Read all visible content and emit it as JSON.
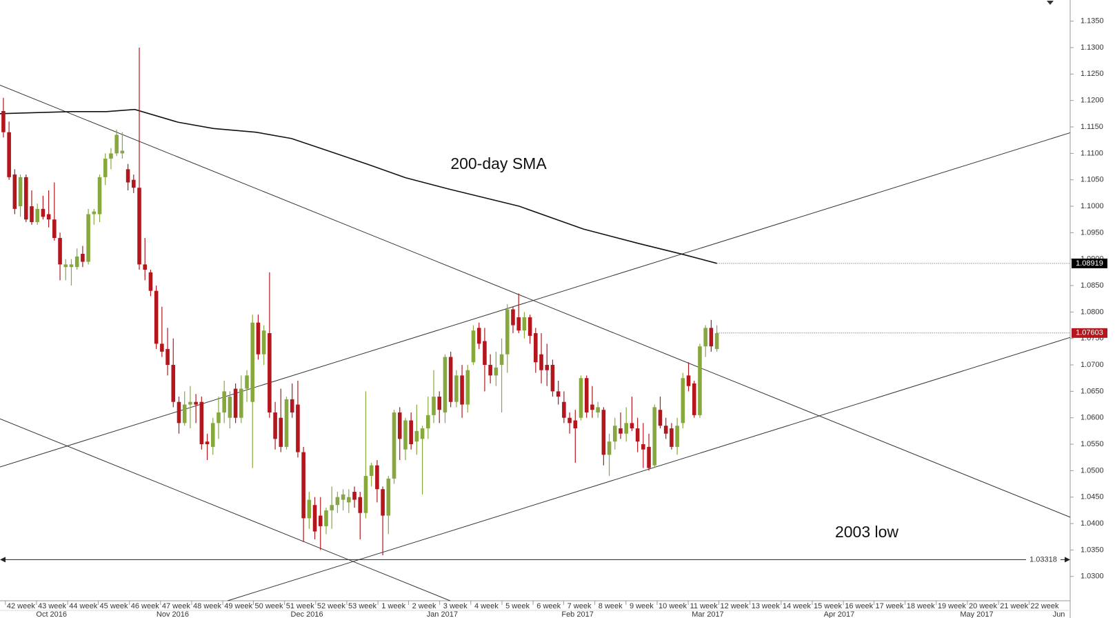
{
  "chart_data": {
    "type": "candlestick",
    "up_color": "#86a83d",
    "down_color": "#b3161c",
    "xlim": [
      -0.6,
      188.4
    ],
    "ylim": [
      1.0254,
      1.139
    ],
    "yticks": [
      {
        "value": 1.03,
        "label": "1.0300"
      },
      {
        "value": 1.035,
        "label": "1.0350"
      },
      {
        "value": 1.04,
        "label": "1.0400"
      },
      {
        "value": 1.045,
        "label": "1.0450"
      },
      {
        "value": 1.05,
        "label": "1.0500"
      },
      {
        "value": 1.055,
        "label": "1.0550"
      },
      {
        "value": 1.06,
        "label": "1.0600"
      },
      {
        "value": 1.065,
        "label": "1.0650"
      },
      {
        "value": 1.07,
        "label": "1.0700"
      },
      {
        "value": 1.075,
        "label": "1.0750"
      },
      {
        "value": 1.08,
        "label": "1.0800"
      },
      {
        "value": 1.085,
        "label": "1.0850"
      },
      {
        "value": 1.09,
        "label": "1.0900"
      },
      {
        "value": 1.095,
        "label": "1.0950"
      },
      {
        "value": 1.1,
        "label": "1.1000"
      },
      {
        "value": 1.105,
        "label": "1.1050"
      },
      {
        "value": 1.11,
        "label": "1.1100"
      },
      {
        "value": 1.115,
        "label": "1.1150"
      },
      {
        "value": 1.12,
        "label": "1.1200"
      },
      {
        "value": 1.125,
        "label": "1.1250"
      },
      {
        "value": 1.13,
        "label": "1.1300"
      },
      {
        "value": 1.135,
        "label": "1.1350"
      }
    ],
    "week_ticks": [
      {
        "value": 3.1,
        "label": "42 week"
      },
      {
        "value": 8.6,
        "label": "43 week"
      },
      {
        "value": 14.1,
        "label": "44 week"
      },
      {
        "value": 19.5,
        "label": "45 week"
      },
      {
        "value": 25.0,
        "label": "46 week"
      },
      {
        "value": 30.5,
        "label": "47 week"
      },
      {
        "value": 36.0,
        "label": "48 week"
      },
      {
        "value": 41.5,
        "label": "49 week"
      },
      {
        "value": 46.9,
        "label": "50 week"
      },
      {
        "value": 52.4,
        "label": "51 week"
      },
      {
        "value": 57.9,
        "label": "52 week"
      },
      {
        "value": 63.4,
        "label": "53 week"
      },
      {
        "value": 68.9,
        "label": "1 week"
      },
      {
        "value": 74.3,
        "label": "2 week"
      },
      {
        "value": 79.8,
        "label": "3 week"
      },
      {
        "value": 85.3,
        "label": "4 week"
      },
      {
        "value": 90.8,
        "label": "5 week"
      },
      {
        "value": 96.3,
        "label": "6 week"
      },
      {
        "value": 101.7,
        "label": "7 week"
      },
      {
        "value": 107.2,
        "label": "8 week"
      },
      {
        "value": 112.7,
        "label": "9 week"
      },
      {
        "value": 118.2,
        "label": "10 week"
      },
      {
        "value": 123.7,
        "label": "11 week"
      },
      {
        "value": 129.1,
        "label": "12 week"
      },
      {
        "value": 134.6,
        "label": "13 week"
      },
      {
        "value": 140.1,
        "label": "14 week"
      },
      {
        "value": 145.6,
        "label": "15 week"
      },
      {
        "value": 151.1,
        "label": "16 week"
      },
      {
        "value": 156.5,
        "label": "17 week"
      },
      {
        "value": 162.0,
        "label": "18 week"
      },
      {
        "value": 167.5,
        "label": "19 week"
      },
      {
        "value": 173.0,
        "label": "20 week"
      },
      {
        "value": 178.5,
        "label": "21 week"
      },
      {
        "value": 183.9,
        "label": "22 week"
      }
    ],
    "month_ticks": [
      {
        "value": 8.5,
        "label": "Oct 2016"
      },
      {
        "value": 29.9,
        "label": "Nov 2016"
      },
      {
        "value": 53.6,
        "label": "Dec 2016"
      },
      {
        "value": 77.5,
        "label": "Jan 2017"
      },
      {
        "value": 101.4,
        "label": "Feb 2017"
      },
      {
        "value": 124.4,
        "label": "Mar 2017"
      },
      {
        "value": 147.6,
        "label": "Apr 2017"
      },
      {
        "value": 171.9,
        "label": "May 2017"
      },
      {
        "value": 186.4,
        "label": "Jun"
      }
    ],
    "candles": [
      [
        1.118,
        1.1205,
        1.113,
        1.114
      ],
      [
        1.114,
        1.116,
        1.105,
        1.1055
      ],
      [
        1.106,
        1.107,
        1.0985,
        1.0995
      ],
      [
        1.1,
        1.106,
        1.098,
        1.1055
      ],
      [
        1.1055,
        1.106,
        1.097,
        1.0975
      ],
      [
        1.1,
        1.103,
        1.0965,
        1.097
      ],
      [
        1.097,
        1.1005,
        1.0965,
        1.0995
      ],
      [
        1.0995,
        1.102,
        1.0975,
        1.098
      ],
      [
        1.0985,
        1.103,
        1.096,
        1.0975
      ],
      [
        1.0975,
        1.1045,
        1.0935,
        1.094
      ],
      [
        1.094,
        1.095,
        1.086,
        1.089
      ],
      [
        1.0885,
        1.09,
        1.086,
        1.089
      ],
      [
        1.0885,
        1.09,
        1.085,
        1.089
      ],
      [
        1.0885,
        1.092,
        1.088,
        1.0905
      ],
      [
        1.091,
        1.0925,
        1.0885,
        1.0895
      ],
      [
        1.0895,
        1.0995,
        1.089,
        1.0985
      ],
      [
        1.0985,
        1.0995,
        1.0965,
        1.099
      ],
      [
        1.0985,
        1.106,
        1.097,
        1.1055
      ],
      [
        1.1055,
        1.11,
        1.104,
        1.109
      ],
      [
        1.109,
        1.111,
        1.107,
        1.11
      ],
      [
        1.11,
        1.1145,
        1.1095,
        1.1135
      ],
      [
        1.11,
        1.114,
        1.109,
        1.1105
      ],
      [
        1.107,
        1.108,
        1.103,
        1.1045
      ],
      [
        1.105,
        1.106,
        1.1025,
        1.1035
      ],
      [
        1.1035,
        1.13,
        1.088,
        1.089
      ],
      [
        1.089,
        1.094,
        1.086,
        1.088
      ],
      [
        1.0875,
        1.088,
        1.083,
        1.084
      ],
      [
        1.084,
        1.085,
        1.073,
        1.074
      ],
      [
        1.074,
        1.081,
        1.0715,
        1.0725
      ],
      [
        1.073,
        1.077,
        1.068,
        1.07
      ],
      [
        1.07,
        1.075,
        1.062,
        1.063
      ],
      [
        1.063,
        1.064,
        1.057,
        1.059
      ],
      [
        1.059,
        1.065,
        1.0585,
        1.0625
      ],
      [
        1.0625,
        1.066,
        1.058,
        1.063
      ],
      [
        1.063,
        1.0645,
        1.059,
        1.0625
      ],
      [
        1.063,
        1.064,
        1.054,
        1.055
      ],
      [
        1.0555,
        1.057,
        1.052,
        1.055
      ],
      [
        1.0545,
        1.06,
        1.053,
        1.059
      ],
      [
        1.059,
        1.064,
        1.056,
        1.061
      ],
      [
        1.061,
        1.067,
        1.059,
        1.065
      ],
      [
        1.06,
        1.065,
        1.058,
        1.064
      ],
      [
        1.0655,
        1.0665,
        1.059,
        1.06
      ],
      [
        1.06,
        1.068,
        1.059,
        1.0655
      ],
      [
        1.0655,
        1.069,
        1.063,
        1.068
      ],
      [
        1.063,
        1.0795,
        1.0505,
        1.078
      ],
      [
        1.078,
        1.0795,
        1.071,
        1.072
      ],
      [
        1.072,
        1.0775,
        1.07,
        1.0765
      ],
      [
        1.076,
        1.0875,
        1.06,
        1.061
      ],
      [
        1.061,
        1.063,
        1.054,
        1.056
      ],
      [
        1.06,
        1.0655,
        1.0535,
        1.0545
      ],
      [
        1.0545,
        1.064,
        1.054,
        1.0635
      ],
      [
        1.0635,
        1.0665,
        1.06,
        1.061
      ],
      [
        1.0625,
        1.067,
        1.0525,
        1.0535
      ],
      [
        1.0535,
        1.0545,
        1.0365,
        1.041
      ],
      [
        1.041,
        1.046,
        1.039,
        1.0445
      ],
      [
        1.0435,
        1.045,
        1.037,
        1.0385
      ],
      [
        1.0415,
        1.045,
        1.035,
        1.0395
      ],
      [
        1.0395,
        1.043,
        1.038,
        1.0425
      ],
      [
        1.0425,
        1.047,
        1.039,
        1.0435
      ],
      [
        1.0435,
        1.046,
        1.042,
        1.045
      ],
      [
        1.0445,
        1.0465,
        1.0425,
        1.0455
      ],
      [
        1.044,
        1.0465,
        1.042,
        1.045
      ],
      [
        1.046,
        1.047,
        1.043,
        1.0445
      ],
      [
        1.045,
        1.046,
        1.037,
        1.042
      ],
      [
        1.042,
        1.065,
        1.041,
        1.049
      ],
      [
        1.049,
        1.0515,
        1.047,
        1.051
      ],
      [
        1.051,
        1.052,
        1.044,
        1.0465
      ],
      [
        1.0465,
        1.047,
        1.034,
        1.0415
      ],
      [
        1.0415,
        1.049,
        1.038,
        1.0485
      ],
      [
        1.0485,
        1.0615,
        1.0475,
        1.061
      ],
      [
        1.061,
        1.062,
        1.052,
        1.056
      ],
      [
        1.054,
        1.06,
        1.052,
        1.0595
      ],
      [
        1.0595,
        1.061,
        1.054,
        1.055
      ],
      [
        1.0555,
        1.0625,
        1.053,
        1.0575
      ],
      [
        1.056,
        1.0585,
        1.0455,
        1.058
      ],
      [
        1.058,
        1.064,
        1.056,
        1.0605
      ],
      [
        1.0605,
        1.069,
        1.059,
        1.064
      ],
      [
        1.064,
        1.065,
        1.059,
        1.0615
      ],
      [
        1.061,
        1.072,
        1.059,
        1.0715
      ],
      [
        1.0715,
        1.0725,
        1.062,
        1.063
      ],
      [
        1.063,
        1.069,
        1.062,
        1.068
      ],
      [
        1.068,
        1.07,
        1.06,
        1.0625
      ],
      [
        1.0625,
        1.07,
        1.061,
        1.069
      ],
      [
        1.0705,
        1.0775,
        1.07,
        1.0765
      ],
      [
        1.077,
        1.078,
        1.073,
        1.074
      ],
      [
        1.0745,
        1.077,
        1.065,
        1.07
      ],
      [
        1.07,
        1.072,
        1.0665,
        1.068
      ],
      [
        1.068,
        1.0725,
        1.066,
        1.0695
      ],
      [
        1.07,
        1.075,
        1.061,
        1.072
      ],
      [
        1.072,
        1.0815,
        1.0685,
        1.0805
      ],
      [
        1.0805,
        1.081,
        1.076,
        1.0775
      ],
      [
        1.079,
        1.0835,
        1.076,
        1.0765
      ],
      [
        1.0765,
        1.08,
        1.075,
        1.079
      ],
      [
        1.079,
        1.0795,
        1.074,
        1.0755
      ],
      [
        1.076,
        1.077,
        1.0685,
        1.0705
      ],
      [
        1.072,
        1.076,
        1.0665,
        1.069
      ],
      [
        1.07,
        1.074,
        1.066,
        1.069
      ],
      [
        1.07,
        1.071,
        1.064,
        1.065
      ],
      [
        1.065,
        1.067,
        1.0625,
        1.064
      ],
      [
        1.063,
        1.065,
        1.059,
        1.06
      ],
      [
        1.06,
        1.061,
        1.057,
        1.059
      ],
      [
        1.0595,
        1.0615,
        1.0515,
        1.058
      ],
      [
        1.06,
        1.068,
        1.0595,
        1.0675
      ],
      [
        1.0675,
        1.068,
        1.06,
        1.061
      ],
      [
        1.0625,
        1.066,
        1.06,
        1.0615
      ],
      [
        1.061,
        1.063,
        1.06,
        1.062
      ],
      [
        1.0615,
        1.062,
        1.051,
        1.053
      ],
      [
        1.053,
        1.057,
        1.049,
        1.0555
      ],
      [
        1.0555,
        1.06,
        1.054,
        1.0585
      ],
      [
        1.058,
        1.061,
        1.056,
        1.057
      ],
      [
        1.057,
        1.062,
        1.0555,
        1.059
      ],
      [
        1.059,
        1.064,
        1.0575,
        1.058
      ],
      [
        1.058,
        1.06,
        1.0535,
        1.0555
      ],
      [
        1.055,
        1.059,
        1.0505,
        1.054
      ],
      [
        1.0545,
        1.057,
        1.05,
        1.0505
      ],
      [
        1.051,
        1.0625,
        1.0505,
        1.062
      ],
      [
        1.0615,
        1.064,
        1.058,
        1.0585
      ],
      [
        1.0585,
        1.06,
        1.056,
        1.057
      ],
      [
        1.058,
        1.059,
        1.054,
        1.0545
      ],
      [
        1.0545,
        1.06,
        1.053,
        1.0585
      ],
      [
        1.059,
        1.0685,
        1.058,
        1.0675
      ],
      [
        1.068,
        1.0705,
        1.065,
        1.066
      ],
      [
        1.0665,
        1.067,
        1.06,
        1.0605
      ],
      [
        1.0605,
        1.074,
        1.06,
        1.0735
      ],
      [
        1.0735,
        1.0775,
        1.0715,
        1.077
      ],
      [
        1.077,
        1.0785,
        1.0725,
        1.0735
      ],
      [
        1.073,
        1.0775,
        1.0725,
        1.076
      ]
    ],
    "sma": {
      "label": "200-day SMA",
      "color": "#111111",
      "x": [
        -0.6,
        12,
        18.2,
        23.2,
        30.8,
        37.1,
        44.6,
        50.9,
        58.4,
        64.7,
        71,
        78.5,
        91.1,
        102.4,
        112.4,
        120,
        126
      ],
      "values": [
        1.1175,
        1.1179,
        1.1179,
        1.1183,
        1.1159,
        1.1147,
        1.114,
        1.1128,
        1.1101,
        1.1078,
        1.1054,
        1.1033,
        1.1,
        1.0957,
        1.0929,
        1.0909,
        1.0892
      ]
    },
    "trendlines": [
      {
        "x": [
          -0.6,
          188.4
        ],
        "y": [
          1.1229,
          1.0412
        ]
      },
      {
        "x": [
          -0.6,
          78.9
        ],
        "y": [
          1.0598,
          1.0254
        ]
      },
      {
        "x": [
          -0.6,
          188.4
        ],
        "y": [
          1.0507,
          1.1139
        ]
      },
      {
        "x": [
          39.6,
          188.4
        ],
        "y": [
          1.0254,
          1.0752
        ]
      }
    ],
    "support": {
      "label": "2003 low",
      "value": 1.03318
    },
    "price_markers": [
      {
        "value": 1.08919,
        "color": "#000000"
      },
      {
        "value": 1.07603,
        "color": "#b3161c"
      }
    ]
  }
}
